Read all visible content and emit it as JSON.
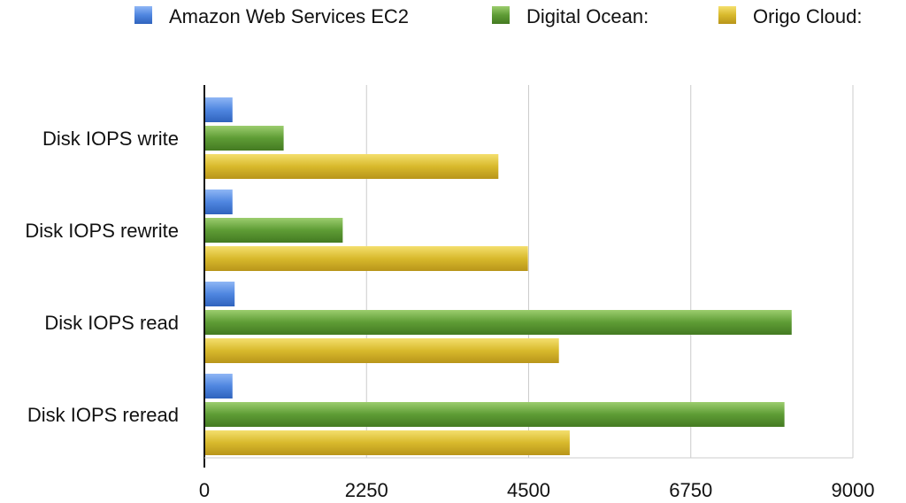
{
  "chart_data": {
    "type": "bar",
    "orientation": "horizontal",
    "categories": [
      "Disk IOPS write",
      "Disk IOPS rewrite",
      "Disk IOPS read",
      "Disk IOPS reread"
    ],
    "series": [
      {
        "name": "Amazon Web Services EC2",
        "color": "#4f86e0",
        "values": [
          390,
          390,
          420,
          390
        ]
      },
      {
        "name": "Digital Ocean:",
        "color": "#5e9c35",
        "values": [
          1100,
          1920,
          8150,
          8050
        ]
      },
      {
        "name": "Origo Cloud:",
        "color": "#d8b92c",
        "values": [
          4080,
          4490,
          4920,
          5070
        ]
      }
    ],
    "xlim": [
      0,
      9000
    ],
    "xticks": [
      "0",
      "2250",
      "4500",
      "6750",
      "9000"
    ],
    "grid": true,
    "legend_position": "top"
  }
}
